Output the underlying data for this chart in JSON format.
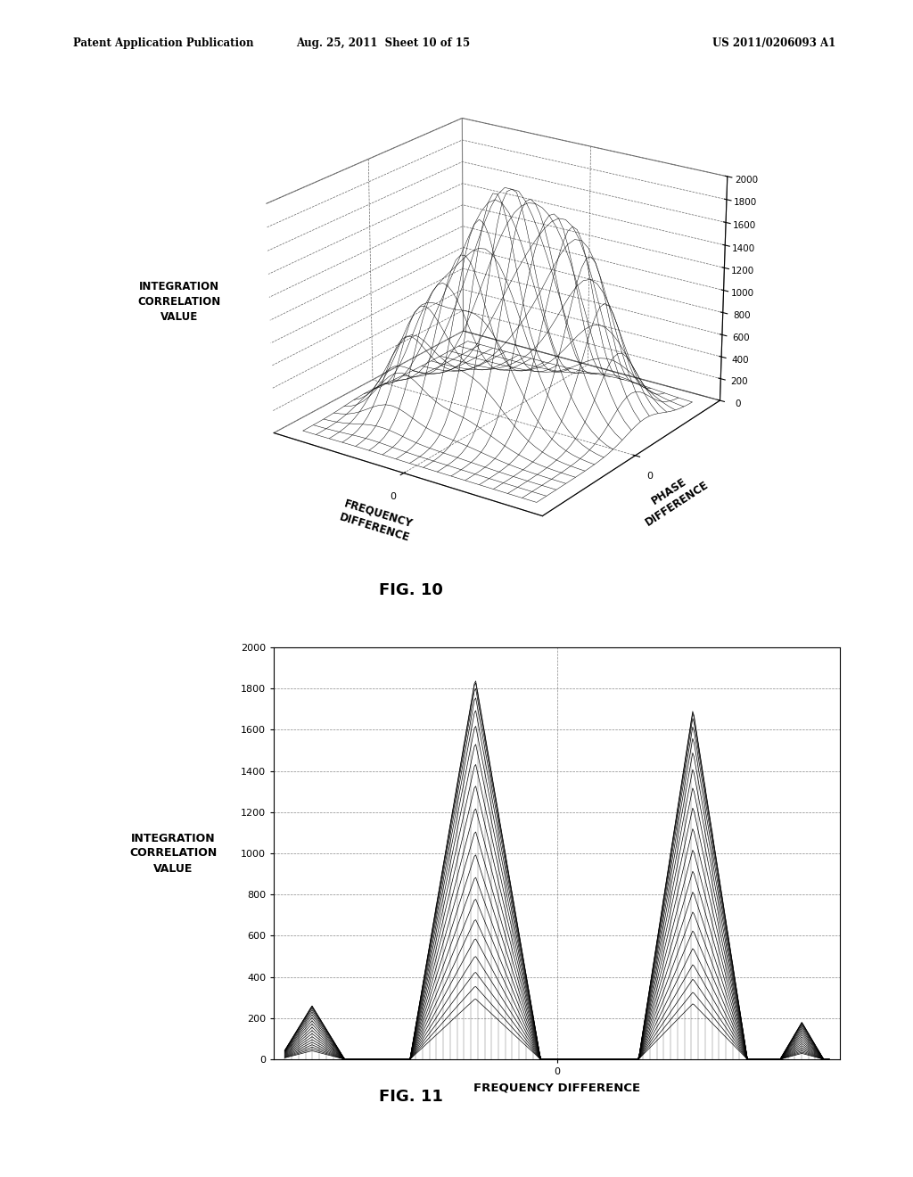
{
  "fig10": {
    "title": "FIG. 10",
    "xlabel": "FREQUENCY\nDIFFERENCE",
    "ylabel": "PHASE\nDIFFERENCE",
    "zlabel": "INTEGRATION\nCORRELATION\nVALUE",
    "zlim": [
      0,
      2000
    ],
    "zticks": [
      0,
      200,
      400,
      600,
      800,
      1000,
      1200,
      1400,
      1600,
      1800,
      2000
    ]
  },
  "fig11": {
    "title": "FIG. 11",
    "xlabel": "FREQUENCY DIFFERENCE",
    "ylabel": "INTEGRATION\nCORRELATION\nVALUE",
    "ylim": [
      0,
      2000
    ],
    "yticks": [
      0,
      200,
      400,
      600,
      800,
      1000,
      1200,
      1400,
      1600,
      1800,
      2000
    ]
  },
  "header_left": "Patent Application Publication",
  "header_mid": "Aug. 25, 2011  Sheet 10 of 15",
  "header_right": "US 2011/0206093 A1",
  "background": "#ffffff",
  "line_color": "#000000"
}
